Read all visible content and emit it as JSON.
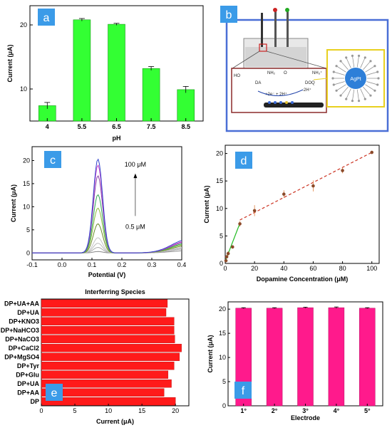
{
  "panels": {
    "a": {
      "badge": "a"
    },
    "b": {
      "badge": "b",
      "labels": {
        "dq": "DOQ",
        "reaction": "+2e⁻ + 2H⁺",
        "minus": "-2H⁺",
        "agpt": "AgPt",
        "nh2": "NH₂",
        "nh3": "NH₃⁺",
        "ho": "HO",
        "o": "O"
      }
    },
    "c": {
      "badge": "c",
      "annot_top": "100 μM",
      "annot_bottom": "0.5 μM"
    },
    "d": {
      "badge": "d"
    },
    "e": {
      "badge": "e"
    },
    "f": {
      "badge": "f"
    }
  },
  "colors": {
    "green_bar": "#33ff33",
    "red_bar": "#ff1a1a",
    "magenta_bar": "#ff1a8c",
    "badge": "#3b9be8",
    "frame_blue": "#4a6fd6"
  },
  "chart_data": [
    {
      "type": "bar",
      "panel": "a",
      "categories": [
        "4",
        "5.5",
        "6.5",
        "7.5",
        "8.5"
      ],
      "values": [
        7.4,
        20.8,
        20.1,
        13.2,
        9.9
      ],
      "errors": [
        0.5,
        0.2,
        0.15,
        0.3,
        0.5
      ],
      "xlabel": "pH",
      "ylabel": "Current (μA)",
      "ylim": [
        5,
        23
      ],
      "yticks": [
        10,
        20
      ]
    },
    {
      "type": "line",
      "panel": "c",
      "xlabel": "Potential (V)",
      "ylabel": "Current (μA)",
      "xlim": [
        -0.1,
        0.4
      ],
      "ylim": [
        -1.5,
        23
      ],
      "xticks": [
        -0.1,
        0.0,
        0.1,
        0.2,
        0.3,
        0.4
      ],
      "yticks": [
        0,
        5,
        10,
        15,
        20
      ],
      "peak_x": 0.12,
      "series": [
        {
          "peak": 0.3,
          "tail": 0.5,
          "color": "#888888"
        },
        {
          "peak": 1.2,
          "tail": 0.9,
          "color": "#aaaaaa"
        },
        {
          "peak": 2.1,
          "tail": 1.1,
          "color": "#bbbbbb"
        },
        {
          "peak": 3.3,
          "tail": 1.3,
          "color": "#c5c5c5"
        },
        {
          "peak": 6.3,
          "tail": 1.6,
          "color": "#6a8a2a"
        },
        {
          "peak": 9.7,
          "tail": 1.9,
          "color": "#8cbb3a"
        },
        {
          "peak": 12.6,
          "tail": 2.1,
          "color": "#33aa55"
        },
        {
          "peak": 16.7,
          "tail": 2.4,
          "color": "#8a44aa"
        },
        {
          "peak": 19.0,
          "tail": 2.6,
          "color": "#cc44cc"
        },
        {
          "peak": 20.3,
          "tail": 2.9,
          "color": "#3344cc"
        }
      ]
    },
    {
      "type": "scatter",
      "panel": "d",
      "xlabel": "Dopamine Concentration (μM)",
      "ylabel": "Current (μA)",
      "xlim": [
        0,
        105
      ],
      "ylim": [
        0,
        21.5
      ],
      "xticks": [
        0,
        20,
        40,
        60,
        80,
        100
      ],
      "yticks": [
        0,
        5,
        10,
        15,
        20
      ],
      "points": [
        {
          "x": 0.5,
          "y": 0.5,
          "err": 0.3
        },
        {
          "x": 1,
          "y": 1.2,
          "err": 0.3
        },
        {
          "x": 2,
          "y": 1.8,
          "err": 0.4
        },
        {
          "x": 5,
          "y": 3.0,
          "err": 0.3
        },
        {
          "x": 10,
          "y": 7.2,
          "err": 0.5
        },
        {
          "x": 20,
          "y": 9.6,
          "err": 1.0
        },
        {
          "x": 40,
          "y": 12.6,
          "err": 0.7
        },
        {
          "x": 60,
          "y": 14.1,
          "err": 1.0
        },
        {
          "x": 80,
          "y": 16.9,
          "err": 0.5
        },
        {
          "x": 100,
          "y": 20.2,
          "err": 0.3
        }
      ],
      "fit_low": [
        [
          0,
          0.4
        ],
        [
          10,
          7.3
        ]
      ],
      "fit_high": [
        [
          10,
          7.9
        ],
        [
          100,
          20.2
        ]
      ]
    },
    {
      "type": "bar",
      "panel": "e",
      "orientation": "horizontal",
      "title": "Interferring Species",
      "categories": [
        "DP+UA+AA",
        "DP+UA",
        "DP+KNO3",
        "DP+NaHCO3",
        "DP+NaCO3",
        "DP+CaCl2",
        "DP+MgSO4",
        "DP+Tyr",
        "DP+Glu",
        "DP+UA",
        "DP+AA",
        "DP"
      ],
      "values": [
        18.8,
        18.6,
        19.8,
        19.8,
        19.9,
        20.9,
        20.6,
        19.8,
        18.9,
        19.4,
        18.3,
        20.0
      ],
      "xlabel": "Current (μA)",
      "xlim": [
        0,
        22
      ],
      "xticks": [
        0,
        5,
        10,
        15,
        20
      ]
    },
    {
      "type": "bar",
      "panel": "f",
      "categories": [
        "1°",
        "2°",
        "3°",
        "4°",
        "5°"
      ],
      "values": [
        20.2,
        20.2,
        20.3,
        20.3,
        20.2
      ],
      "errors": [
        0.1,
        0.1,
        0.1,
        0.15,
        0.1
      ],
      "xlabel": "Electrode",
      "ylabel": "Current (μA)",
      "ylim": [
        0,
        21.5
      ],
      "yticks": [
        0,
        5,
        10,
        15,
        20
      ]
    }
  ]
}
